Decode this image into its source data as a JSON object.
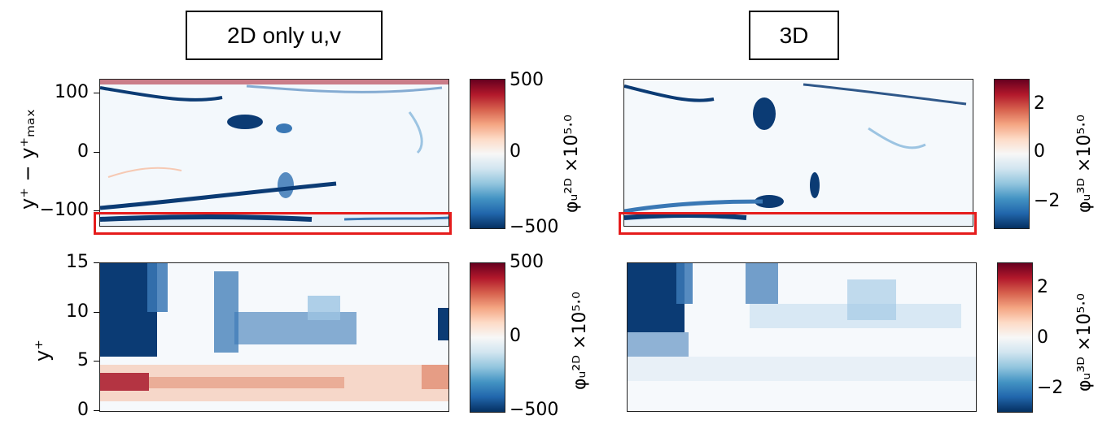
{
  "chart_data": [
    {
      "type": "heatmap",
      "title": "2D only u,v",
      "ylabel": "y+ − y+max",
      "yticks": [
        "100",
        "0",
        "−100"
      ],
      "ylim": [
        -128,
        128
      ],
      "colorbar": {
        "label": "φu^2D ×10^5.0",
        "ticks": [
          "500",
          "0",
          "−500"
        ],
        "range": [
          -500,
          500
        ]
      },
      "highlight": "bottom band near y+ − y+max ≈ −120"
    },
    {
      "type": "heatmap",
      "title": "3D",
      "ylim": [
        -128,
        128
      ],
      "colorbar": {
        "label": "φu^3D ×10^5.0",
        "ticks": [
          "2",
          "0",
          "−2"
        ],
        "range": [
          -3,
          3
        ]
      },
      "highlight": "bottom band near y+ − y+max ≈ −120"
    },
    {
      "type": "heatmap",
      "ylabel": "y+",
      "yticks": [
        "15",
        "10",
        "5",
        "0"
      ],
      "ylim": [
        0,
        15
      ],
      "colorbar": {
        "label": "φu^2D ×10^5.0",
        "ticks": [
          "500",
          "0",
          "−500"
        ],
        "range": [
          -500,
          500
        ]
      }
    },
    {
      "type": "heatmap",
      "ylim": [
        0,
        15
      ],
      "colorbar": {
        "label": "φu^3D ×10^5.0",
        "ticks": [
          "2",
          "0",
          "−2"
        ],
        "range": [
          -3,
          3
        ]
      }
    }
  ],
  "titles": {
    "left": "2D only u,v",
    "right": "3D"
  },
  "labels": {
    "ylabel_top": "y⁺ − y⁺ₘₐₓ",
    "ylabel_bottom": "y⁺",
    "cbar_2d": "φᵤ²ᴰ ×10⁵·⁰",
    "cbar_3d": "φᵤ³ᴰ ×10⁵·⁰"
  },
  "ticks": {
    "top_y": [
      "100",
      "0",
      "−100"
    ],
    "bottom_y": [
      "15",
      "10",
      "5",
      "0"
    ],
    "cbar_2d": [
      "500",
      "0",
      "−500"
    ],
    "cbar_3d": [
      "2",
      "0",
      "−2"
    ]
  },
  "colors": {
    "red": "#67001f",
    "white": "#f7f7f7",
    "blue": "#053061",
    "highlight": "#e51c1c"
  }
}
